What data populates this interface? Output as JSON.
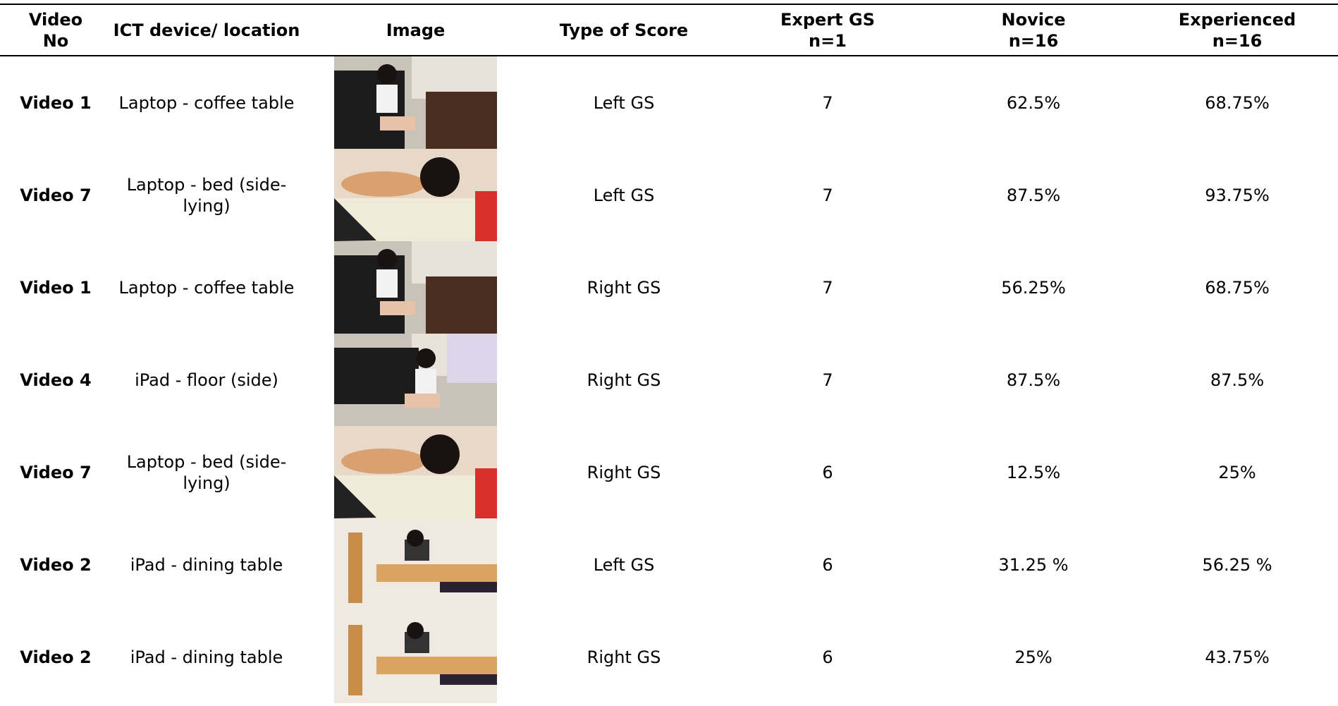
{
  "table": {
    "header": [
      [
        "Video",
        "No"
      ],
      [
        "ICT device/ location"
      ],
      [
        "Image"
      ],
      [
        "Type of Score"
      ],
      [
        "Expert GS",
        "n=1"
      ],
      [
        "Novice",
        "n=16"
      ],
      [
        "Experienced",
        "n=16"
      ]
    ],
    "rows": [
      [
        "Video 1",
        "Laptop - coffee table",
        "Left GS",
        "7",
        "62.5%",
        "68.75%"
      ],
      [
        "Video 7",
        "Laptop - bed (side-lying)",
        "Left GS",
        "7",
        "87.5%",
        "93.75%"
      ],
      [
        "Video 1",
        "Laptop - coffee table",
        "Right GS",
        "7",
        "56.25%",
        "68.75%"
      ],
      [
        "Video 4",
        "iPad - floor (side)",
        "Right GS",
        "7",
        "87.5%",
        "87.5%"
      ],
      [
        "Video 7",
        "Laptop - bed (side-lying)",
        "Right GS",
        "6",
        "12.5%",
        "25%"
      ],
      [
        "Video 2",
        "iPad - dining table",
        "Left GS",
        "6",
        "31.25 %",
        "56.25 %"
      ],
      [
        "Video 2",
        "iPad - dining table",
        "Right GS",
        "6",
        "25%",
        "43.75%"
      ]
    ]
  }
}
